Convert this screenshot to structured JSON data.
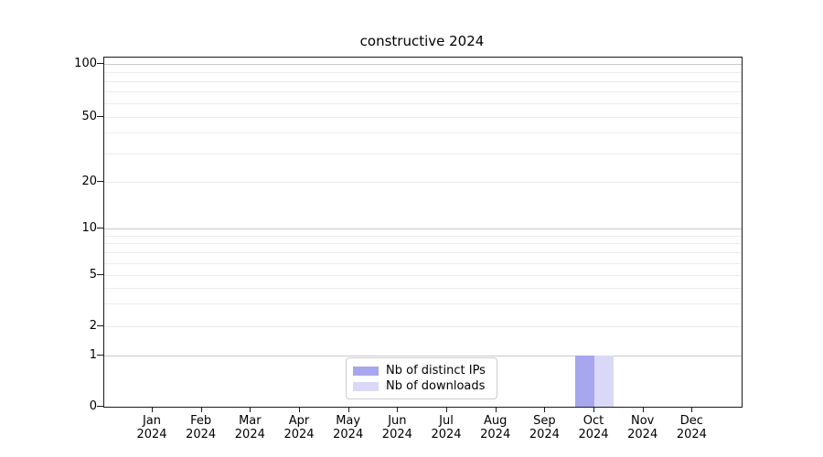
{
  "chart_data": {
    "type": "bar",
    "title": "constructive 2024",
    "categories": [
      "Jan 2024",
      "Feb 2024",
      "Mar 2024",
      "Apr 2024",
      "May 2024",
      "Jun 2024",
      "Jul 2024",
      "Aug 2024",
      "Sep 2024",
      "Oct 2024",
      "Nov 2024",
      "Dec 2024"
    ],
    "month_labels": [
      "Jan",
      "Feb",
      "Mar",
      "Apr",
      "May",
      "Jun",
      "Jul",
      "Aug",
      "Sep",
      "Oct",
      "Nov",
      "Dec"
    ],
    "year_label": "2024",
    "series": [
      {
        "name": "Nb of distinct IPs",
        "color": "#a7a7ef",
        "values": [
          0,
          0,
          0,
          0,
          0,
          0,
          0,
          0,
          0,
          1,
          0,
          0
        ]
      },
      {
        "name": "Nb of downloads",
        "color": "#d9d9f7",
        "values": [
          0,
          0,
          0,
          0,
          0,
          0,
          0,
          0,
          0,
          1,
          0,
          0
        ]
      }
    ],
    "xlabel": "",
    "ylabel": "",
    "yscale": "symlog",
    "ylim": [
      0,
      100
    ],
    "y_tick_values": [
      0,
      1,
      2,
      5,
      10,
      20,
      50,
      100
    ],
    "y_tick_labels": [
      "0",
      "1",
      "2",
      "5",
      "10",
      "20",
      "50",
      "100"
    ],
    "y_minor_gridline_values": [
      2,
      3,
      4,
      5,
      6,
      7,
      8,
      9,
      20,
      30,
      40,
      50,
      60,
      70,
      80,
      90
    ],
    "y_major_gridline_values": [
      1,
      10,
      100
    ],
    "grid": "both",
    "legend_position": "lower center",
    "colors": {
      "background": "#ffffff",
      "axis_spine": "#1a1a1a",
      "major_grid": "#c9c9c9",
      "minor_grid": "#ececec",
      "text": "#000000"
    }
  }
}
